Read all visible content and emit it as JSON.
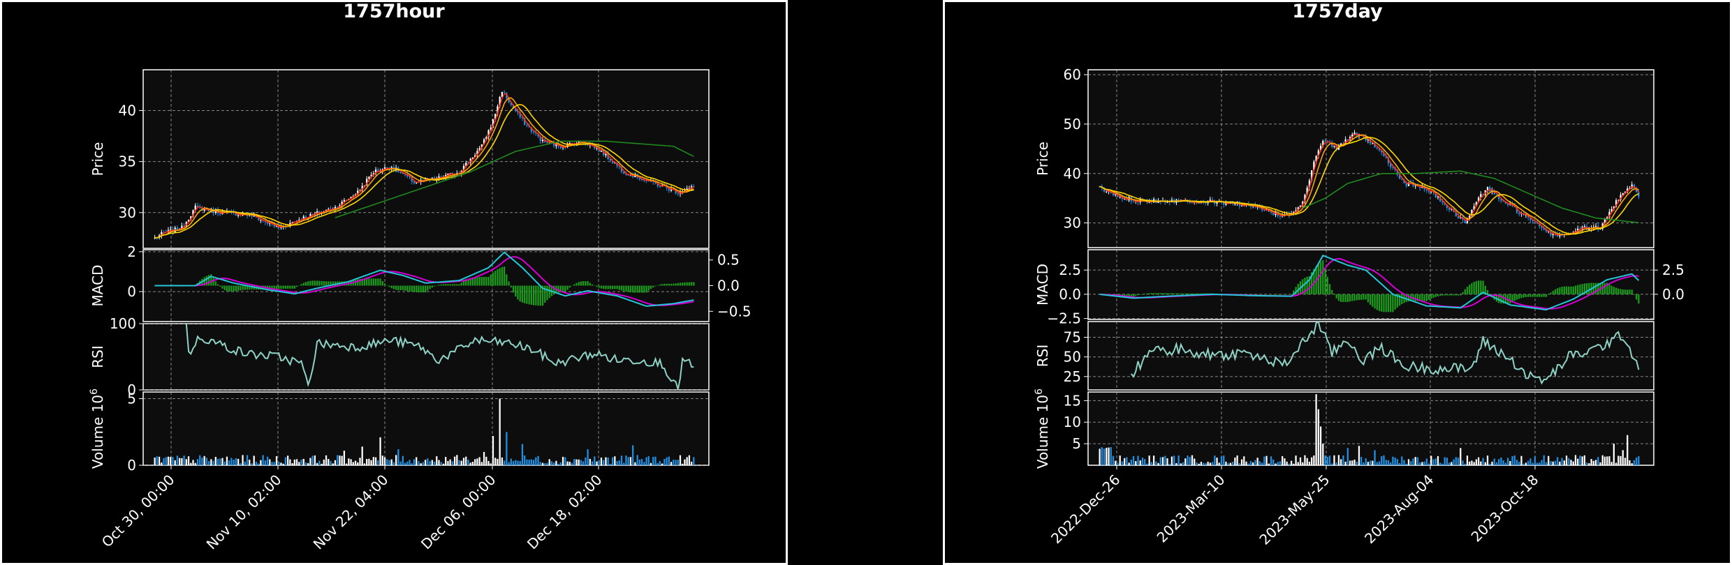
{
  "colors": {
    "background": "#000000",
    "plot_background": "#0d0d0d",
    "up_candle": "#ffffff",
    "down_candle": "#1e90e6",
    "ma_short": "#ff2a1a",
    "ma_mid": "#ffa500",
    "ma_long1": "#ffd700",
    "ma_long2": "#1f8a1f",
    "macd_line": "#26c6da",
    "signal_line": "#d500d5",
    "histogram": "#1a9e1a",
    "rsi_line": "#8fd3c7",
    "grid": "#bbbbbb"
  },
  "charts": [
    {
      "id": "hour",
      "title": "1757hour",
      "x_ticks": [
        "Oct 30, 00:00",
        "Nov 10, 02:00",
        "Nov 22, 04:00",
        "Dec 06, 00:00",
        "Dec 18, 02:00"
      ],
      "price_ticks": [
        "30",
        "35",
        "40"
      ],
      "macd_ticks_left": [
        "2",
        "0"
      ],
      "macd_ticks_right": [
        "0.5",
        "0.0",
        "−0.5"
      ],
      "rsi_ticks": [
        "100",
        "0"
      ],
      "volume_ticks": [
        "5",
        "0"
      ],
      "labels": {
        "price": "Price",
        "macd": "MACD",
        "rsi": "RSI",
        "volume": "Volume",
        "volume_exp": "10",
        "volume_exp_power": "6"
      }
    },
    {
      "id": "day",
      "title": "1757day",
      "x_ticks": [
        "2022-Dec-26",
        "2023-Mar-10",
        "2023-May-25",
        "2023-Aug-04",
        "2023-Oct-18"
      ],
      "price_ticks": [
        "30",
        "40",
        "50",
        "60"
      ],
      "macd_ticks_left": [
        "2.5",
        "0.0",
        "−2.5"
      ],
      "macd_ticks_right": [
        "2.5",
        "0.0"
      ],
      "rsi_ticks": [
        "25",
        "50",
        "75"
      ],
      "volume_ticks": [
        "5",
        "10",
        "15"
      ],
      "labels": {
        "price": "Price",
        "macd": "MACD",
        "rsi": "RSI",
        "volume": "Volume",
        "volume_exp": "10",
        "volume_exp_power": "6"
      }
    }
  ],
  "chart_data": [
    {
      "type": "candlestick",
      "title": "1757hour",
      "n_bars": 240,
      "ylabel": "Price",
      "price_ylim": [
        26.5,
        44
      ],
      "price_anchors": [
        [
          0,
          27.5
        ],
        [
          4,
          28
        ],
        [
          12,
          28.5
        ],
        [
          18,
          30.5
        ],
        [
          30,
          30
        ],
        [
          42,
          29.8
        ],
        [
          55,
          28.5
        ],
        [
          66,
          29.5
        ],
        [
          80,
          30.5
        ],
        [
          90,
          32
        ],
        [
          97,
          34
        ],
        [
          105,
          34.5
        ],
        [
          115,
          33
        ],
        [
          125,
          33.3
        ],
        [
          135,
          34
        ],
        [
          145,
          36.5
        ],
        [
          150,
          39
        ],
        [
          154,
          42
        ],
        [
          158,
          40.5
        ],
        [
          165,
          38.5
        ],
        [
          172,
          37
        ],
        [
          180,
          36.5
        ],
        [
          190,
          37
        ],
        [
          198,
          36
        ],
        [
          208,
          34
        ],
        [
          220,
          33
        ],
        [
          232,
          32
        ],
        [
          239,
          32.5
        ]
      ],
      "ma_long_anchors": [
        [
          80,
          29.5
        ],
        [
          100,
          31
        ],
        [
          120,
          32.5
        ],
        [
          140,
          34
        ],
        [
          160,
          36
        ],
        [
          180,
          37
        ],
        [
          200,
          37
        ],
        [
          230,
          36.5
        ],
        [
          239,
          35.5
        ]
      ],
      "macd_ylim": [
        -0.7,
        0.7
      ],
      "macd_anchors": [
        [
          0,
          0
        ],
        [
          18,
          0
        ],
        [
          25,
          0.18
        ],
        [
          35,
          0.05
        ],
        [
          50,
          -0.08
        ],
        [
          62,
          -0.16
        ],
        [
          72,
          -0.05
        ],
        [
          86,
          0.08
        ],
        [
          100,
          0.3
        ],
        [
          110,
          0.2
        ],
        [
          120,
          0.05
        ],
        [
          135,
          0.1
        ],
        [
          148,
          0.35
        ],
        [
          155,
          0.65
        ],
        [
          163,
          0.35
        ],
        [
          172,
          -0.05
        ],
        [
          182,
          -0.2
        ],
        [
          192,
          -0.1
        ],
        [
          205,
          -0.2
        ],
        [
          218,
          -0.4
        ],
        [
          230,
          -0.35
        ],
        [
          239,
          -0.28
        ]
      ],
      "rsi_ylim": [
        0,
        100
      ],
      "rsi_start": 14,
      "rsi_anchors": [
        [
          14,
          100
        ],
        [
          15,
          55
        ],
        [
          20,
          80
        ],
        [
          40,
          55
        ],
        [
          55,
          50
        ],
        [
          65,
          40
        ],
        [
          68,
          5
        ],
        [
          72,
          70
        ],
        [
          90,
          65
        ],
        [
          105,
          75
        ],
        [
          118,
          65
        ],
        [
          125,
          45
        ],
        [
          132,
          55
        ],
        [
          142,
          75
        ],
        [
          158,
          70
        ],
        [
          168,
          60
        ],
        [
          178,
          40
        ],
        [
          195,
          55
        ],
        [
          205,
          45
        ],
        [
          215,
          45
        ],
        [
          225,
          40
        ],
        [
          232,
          0
        ],
        [
          234,
          45
        ],
        [
          239,
          35
        ]
      ],
      "volume_ylim": [
        0,
        5.5
      ],
      "volume_unit": "10^6",
      "volume_spikes": [
        [
          146,
          1
        ],
        [
          150,
          2.2
        ],
        [
          153,
          5
        ],
        [
          156,
          2.5
        ],
        [
          163,
          1.6
        ],
        [
          92,
          1.4
        ],
        [
          108,
          1.2
        ],
        [
          100,
          2.1
        ],
        [
          84,
          1.1
        ],
        [
          192,
          1.2
        ],
        [
          212,
          1.5
        ]
      ]
    },
    {
      "type": "candlestick",
      "title": "1757day",
      "n_bars": 240,
      "ylabel": "Price",
      "price_ylim": [
        25,
        61
      ],
      "price_anchors": [
        [
          0,
          37
        ],
        [
          10,
          35
        ],
        [
          20,
          34.5
        ],
        [
          40,
          34.5
        ],
        [
          60,
          34
        ],
        [
          70,
          33
        ],
        [
          80,
          31.5
        ],
        [
          85,
          32
        ],
        [
          90,
          34
        ],
        [
          95,
          42
        ],
        [
          99,
          47
        ],
        [
          105,
          45
        ],
        [
          112,
          48
        ],
        [
          118,
          47
        ],
        [
          125,
          44
        ],
        [
          135,
          38
        ],
        [
          145,
          37
        ],
        [
          155,
          33
        ],
        [
          162,
          30
        ],
        [
          168,
          35
        ],
        [
          172,
          37
        ],
        [
          180,
          34
        ],
        [
          190,
          31
        ],
        [
          198,
          28
        ],
        [
          205,
          27.5
        ],
        [
          215,
          29
        ],
        [
          222,
          29
        ],
        [
          230,
          35
        ],
        [
          236,
          38
        ],
        [
          240,
          34.5
        ]
      ],
      "ma_long_anchors": [
        [
          90,
          33
        ],
        [
          100,
          35
        ],
        [
          110,
          38
        ],
        [
          125,
          40
        ],
        [
          140,
          40
        ],
        [
          160,
          40.5
        ],
        [
          175,
          39
        ],
        [
          190,
          36
        ],
        [
          205,
          33
        ],
        [
          220,
          31
        ],
        [
          240,
          30
        ]
      ],
      "macd_ylim": [
        -2.6,
        4.6
      ],
      "macd_anchors": [
        [
          0,
          0
        ],
        [
          15,
          -0.4
        ],
        [
          30,
          -0.2
        ],
        [
          50,
          0
        ],
        [
          70,
          -0.15
        ],
        [
          85,
          -0.2
        ],
        [
          93,
          1.5
        ],
        [
          99,
          4
        ],
        [
          110,
          3
        ],
        [
          118,
          2.5
        ],
        [
          130,
          0
        ],
        [
          145,
          -1.2
        ],
        [
          160,
          -1.4
        ],
        [
          170,
          0.2
        ],
        [
          182,
          -1.1
        ],
        [
          198,
          -1.6
        ],
        [
          210,
          -0.5
        ],
        [
          225,
          1.5
        ],
        [
          236,
          2.1
        ],
        [
          240,
          1.2
        ]
      ],
      "rsi_ylim": [
        8,
        95
      ],
      "rsi_start": 14,
      "rsi_anchors": [
        [
          14,
          28
        ],
        [
          22,
          55
        ],
        [
          35,
          60
        ],
        [
          50,
          52
        ],
        [
          65,
          55
        ],
        [
          75,
          45
        ],
        [
          82,
          40
        ],
        [
          92,
          75
        ],
        [
          97,
          92
        ],
        [
          103,
          55
        ],
        [
          110,
          72
        ],
        [
          117,
          45
        ],
        [
          125,
          62
        ],
        [
          135,
          38
        ],
        [
          150,
          35
        ],
        [
          165,
          35
        ],
        [
          170,
          70
        ],
        [
          178,
          55
        ],
        [
          185,
          40
        ],
        [
          190,
          25
        ],
        [
          198,
          20
        ],
        [
          208,
          50
        ],
        [
          220,
          60
        ],
        [
          232,
          78
        ],
        [
          240,
          32
        ]
      ],
      "volume_ylim": [
        0,
        17
      ],
      "volume_unit": "10^6",
      "volume_spikes": [
        [
          96,
          16.5
        ],
        [
          97,
          13
        ],
        [
          98,
          9
        ],
        [
          99,
          5
        ],
        [
          110,
          4
        ],
        [
          115,
          4.5
        ],
        [
          122,
          3.5
        ],
        [
          160,
          4
        ],
        [
          228,
          5
        ],
        [
          232,
          3.5
        ],
        [
          234,
          7
        ]
      ]
    }
  ]
}
